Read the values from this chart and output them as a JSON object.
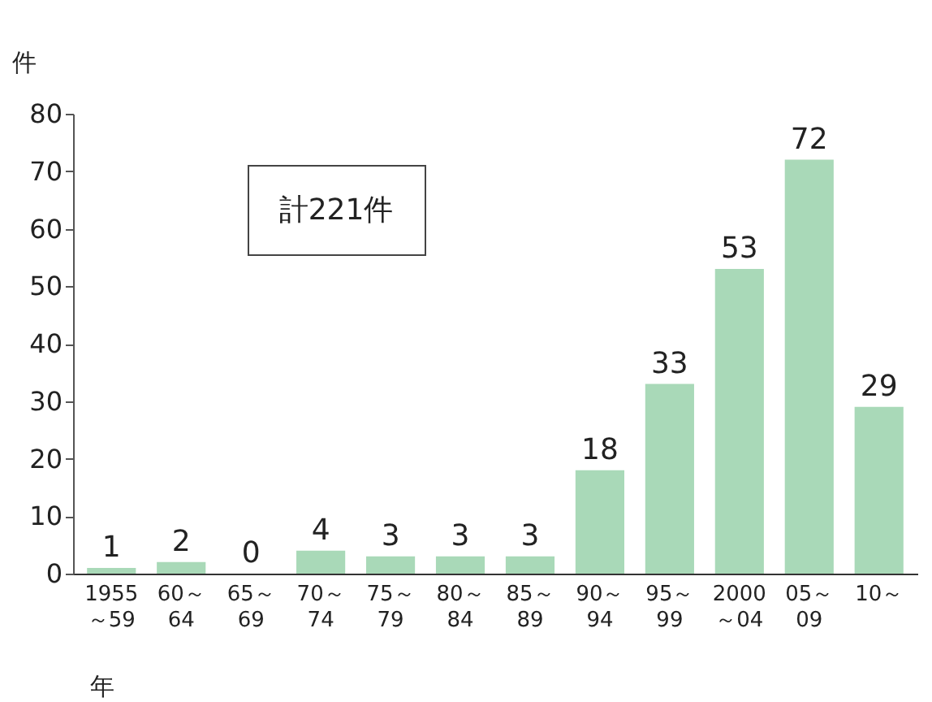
{
  "chart_data": {
    "type": "bar",
    "xlabel": "年",
    "ylabel": "件",
    "categories": [
      "1955\n～59",
      "60～\n64",
      "65～\n69",
      "70～\n74",
      "75～\n79",
      "80～\n84",
      "85～\n89",
      "90～\n94",
      "95～\n99",
      "2000\n～04",
      "05～\n09",
      "10～"
    ],
    "values": [
      1,
      2,
      0,
      4,
      3,
      3,
      3,
      18,
      33,
      53,
      72,
      29
    ],
    "color": "#a9d9b8",
    "ylim": [
      0,
      80
    ],
    "yticks": [
      0,
      10,
      20,
      30,
      40,
      50,
      60,
      70,
      80
    ],
    "data_labels": true,
    "annotations": [
      "計221件"
    ]
  }
}
